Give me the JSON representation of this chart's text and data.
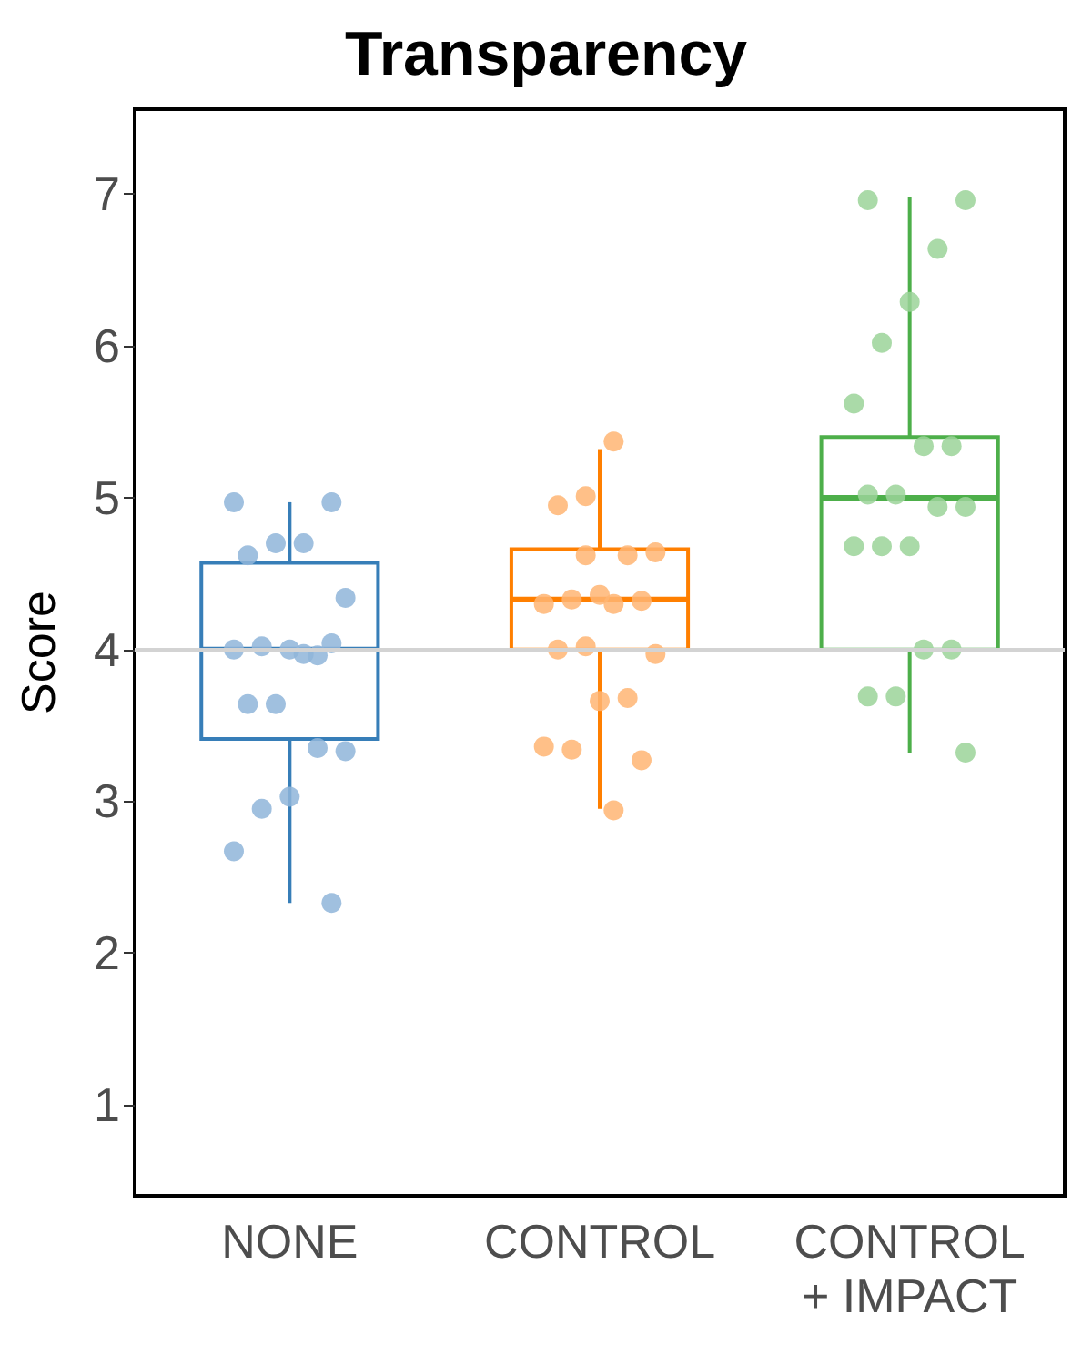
{
  "chart_data": {
    "type": "box",
    "title": "Transparency",
    "ylabel": "Score",
    "categories": [
      "NONE",
      "CONTROL",
      "CONTROL\n+ IMPACT"
    ],
    "ylim": [
      0.4,
      7.56
    ],
    "yticks": [
      1,
      2,
      3,
      4,
      5,
      6,
      7
    ],
    "grid": false,
    "ref_lines": [
      {
        "axis": "y",
        "value": 4,
        "color": "#d3d3d3"
      }
    ],
    "series": [
      {
        "colors": [
          "#377eb8",
          "#ff7f00",
          "#4daf4a"
        ],
        "boxes": [
          {
            "low": 2.33,
            "q1": 3.41,
            "median": 4.0,
            "q3": 4.57,
            "high": 4.97
          },
          {
            "low": 2.95,
            "q1": 4.0,
            "median": 4.33,
            "q3": 4.66,
            "high": 5.32
          },
          {
            "low": 3.32,
            "q1": 4.0,
            "median": 5.0,
            "q3": 5.4,
            "high": 6.98
          }
        ]
      },
      {
        "type": "scatter",
        "marker": "circle",
        "x": [
          "NONE",
          "NONE",
          "NONE",
          "NONE",
          "NONE",
          "NONE",
          "NONE",
          "NONE",
          "NONE",
          "NONE",
          "NONE",
          "NONE",
          "NONE",
          "NONE",
          "NONE",
          "NONE",
          "NONE",
          "NONE",
          "NONE",
          "NONE",
          "CONTROL",
          "CONTROL",
          "CONTROL",
          "CONTROL",
          "CONTROL",
          "CONTROL",
          "CONTROL",
          "CONTROL",
          "CONTROL",
          "CONTROL",
          "CONTROL",
          "CONTROL",
          "CONTROL",
          "CONTROL",
          "CONTROL",
          "CONTROL",
          "CONTROL",
          "CONTROL",
          "CONTROL",
          "CONTROL",
          "CONTROL\n+ IMPACT",
          "CONTROL\n+ IMPACT",
          "CONTROL\n+ IMPACT",
          "CONTROL\n+ IMPACT",
          "CONTROL\n+ IMPACT",
          "CONTROL\n+ IMPACT",
          "CONTROL\n+ IMPACT",
          "CONTROL\n+ IMPACT",
          "CONTROL\n+ IMPACT",
          "CONTROL\n+ IMPACT",
          "CONTROL\n+ IMPACT",
          "CONTROL\n+ IMPACT",
          "CONTROL\n+ IMPACT",
          "CONTROL\n+ IMPACT",
          "CONTROL\n+ IMPACT",
          "CONTROL\n+ IMPACT",
          "CONTROL\n+ IMPACT",
          "CONTROL\n+ IMPACT",
          "CONTROL\n+ IMPACT",
          "CONTROL\n+ IMPACT"
        ],
        "values": [
          4.97,
          4.97,
          4.7,
          4.7,
          4.62,
          4.34,
          3.96,
          4.0,
          4.02,
          4.0,
          4.04,
          3.97,
          3.64,
          3.64,
          3.33,
          3.35,
          3.03,
          2.95,
          2.67,
          2.33,
          5.37,
          5.01,
          4.95,
          4.64,
          4.62,
          4.36,
          4.33,
          4.3,
          4.32,
          4.3,
          4.02,
          4.0,
          3.97,
          3.68,
          3.66,
          3.34,
          3.36,
          3.27,
          2.94,
          4.62,
          6.96,
          6.96,
          6.64,
          6.29,
          6.02,
          5.62,
          5.34,
          5.34,
          5.02,
          5.02,
          4.94,
          4.94,
          4.68,
          4.68,
          4.68,
          4.0,
          4.0,
          3.69,
          3.69,
          3.32
        ],
        "colors": [
          "#8fb5d9",
          "#8fb5d9",
          "#8fb5d9",
          "#8fb5d9",
          "#8fb5d9",
          "#8fb5d9",
          "#8fb5d9",
          "#8fb5d9",
          "#8fb5d9",
          "#8fb5d9",
          "#8fb5d9",
          "#8fb5d9",
          "#8fb5d9",
          "#8fb5d9",
          "#8fb5d9",
          "#8fb5d9",
          "#8fb5d9",
          "#8fb5d9",
          "#8fb5d9",
          "#8fb5d9",
          "#ffb573",
          "#ffb573",
          "#ffb573",
          "#ffb573",
          "#ffb573",
          "#ffb573",
          "#ffb573",
          "#ffb573",
          "#ffb573",
          "#ffb573",
          "#ffb573",
          "#ffb573",
          "#ffb573",
          "#ffb573",
          "#ffb573",
          "#ffb573",
          "#ffb573",
          "#ffb573",
          "#ffb573",
          "#ffb573",
          "#9bd399",
          "#9bd399",
          "#9bd399",
          "#9bd399",
          "#9bd399",
          "#9bd399",
          "#9bd399",
          "#9bd399",
          "#9bd399",
          "#9bd399",
          "#9bd399",
          "#9bd399",
          "#9bd399",
          "#9bd399",
          "#9bd399",
          "#9bd399",
          "#9bd399",
          "#9bd399",
          "#9bd399",
          "#9bd399"
        ]
      }
    ]
  }
}
